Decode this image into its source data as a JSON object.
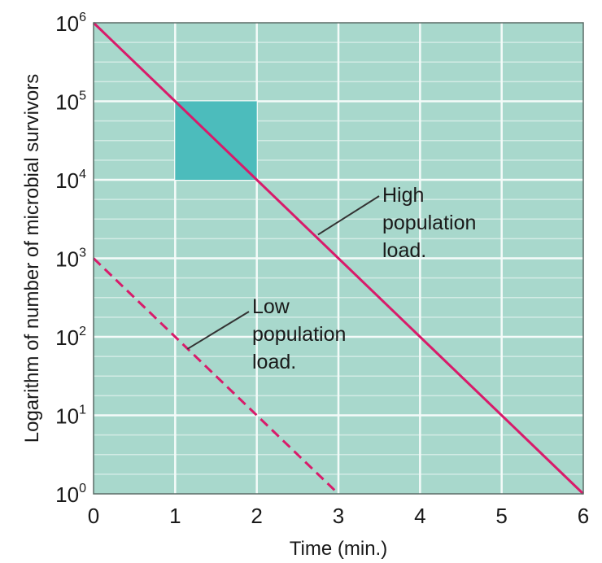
{
  "chart_data": {
    "type": "line",
    "xlabel": "Time (min.)",
    "ylabel": "Logarithm of number of microbial survivors",
    "x_ticks": [
      "0",
      "1",
      "2",
      "3",
      "4",
      "5",
      "6"
    ],
    "y_ticks": [
      {
        "base": "10",
        "exp": "0"
      },
      {
        "base": "10",
        "exp": "1"
      },
      {
        "base": "10",
        "exp": "2"
      },
      {
        "base": "10",
        "exp": "3"
      },
      {
        "base": "10",
        "exp": "4"
      },
      {
        "base": "10",
        "exp": "5"
      },
      {
        "base": "10",
        "exp": "6"
      }
    ],
    "xlim": [
      0,
      6
    ],
    "ylim": [
      1,
      1000000
    ],
    "y_scale": "log",
    "grid": true,
    "series": [
      {
        "x": [
          0,
          1,
          2,
          3,
          4,
          5,
          6
        ],
        "y": [
          1000000,
          100000,
          10000,
          1000,
          100,
          10,
          1
        ],
        "style": "solid",
        "color": "#d81b6a"
      },
      {
        "x": [
          0,
          1,
          2,
          3
        ],
        "y": [
          1000,
          100,
          10,
          1
        ],
        "style": "dashed",
        "color": "#d81b6a"
      }
    ],
    "highlight_box": {
      "x": [
        1,
        2
      ],
      "y": [
        10000,
        100000
      ],
      "color": "#4cbcbc"
    },
    "annotations": [
      {
        "lines": [
          "High",
          "population",
          "load."
        ],
        "points_to": {
          "x": 2.75,
          "y": 2000
        }
      },
      {
        "lines": [
          "Low",
          "population",
          "load."
        ],
        "points_to": {
          "x": 1.15,
          "y": 70
        }
      }
    ],
    "colors": {
      "plot_bg": "#a8d8cc",
      "grid": "#f4fbf9",
      "line": "#d81b6a"
    }
  }
}
